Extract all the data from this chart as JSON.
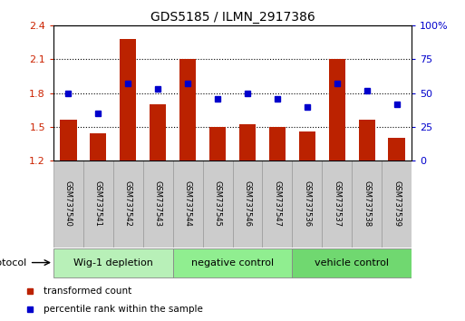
{
  "title": "GDS5185 / ILMN_2917386",
  "samples": [
    "GSM737540",
    "GSM737541",
    "GSM737542",
    "GSM737543",
    "GSM737544",
    "GSM737545",
    "GSM737546",
    "GSM737547",
    "GSM737536",
    "GSM737537",
    "GSM737538",
    "GSM737539"
  ],
  "red_values": [
    1.56,
    1.44,
    2.28,
    1.7,
    2.1,
    1.5,
    1.52,
    1.5,
    1.46,
    2.1,
    1.56,
    1.4
  ],
  "blue_values_pct": [
    50,
    35,
    57,
    53,
    57,
    46,
    50,
    46,
    40,
    57,
    52,
    42
  ],
  "ylim_left": [
    1.2,
    2.4
  ],
  "ylim_right": [
    0,
    100
  ],
  "yticks_left": [
    1.2,
    1.5,
    1.8,
    2.1,
    2.4
  ],
  "yticks_right": [
    0,
    25,
    50,
    75,
    100
  ],
  "ytick_labels_left": [
    "1.2",
    "1.5",
    "1.8",
    "2.1",
    "2.4"
  ],
  "ytick_labels_right": [
    "0",
    "25",
    "50",
    "75",
    "100%"
  ],
  "groups": [
    {
      "label": "Wig-1 depletion",
      "indices": [
        0,
        1,
        2,
        3
      ],
      "color": "#b8f0b8"
    },
    {
      "label": "negative control",
      "indices": [
        4,
        5,
        6,
        7
      ],
      "color": "#90ee90"
    },
    {
      "label": "vehicle control",
      "indices": [
        8,
        9,
        10,
        11
      ],
      "color": "#70d870"
    }
  ],
  "bar_color": "#bb2200",
  "dot_color": "#0000cc",
  "bar_bottom": 1.2,
  "bg_color": "#ffffff",
  "sample_box_color": "#cccccc",
  "protocol_label": "protocol",
  "legend_red": "transformed count",
  "legend_blue": "percentile rank within the sample",
  "dotted_lines": [
    1.5,
    1.8,
    2.1
  ]
}
